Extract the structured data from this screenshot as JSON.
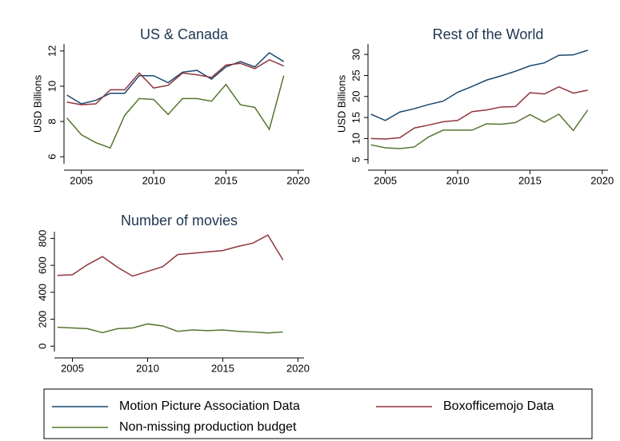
{
  "chart_data": [
    {
      "type": "line",
      "title": "US & Canada",
      "y_label": "USD Billions",
      "x": [
        2004,
        2005,
        2006,
        2007,
        2008,
        2009,
        2010,
        2011,
        2012,
        2013,
        2014,
        2015,
        2016,
        2017,
        2018,
        2019
      ],
      "xlim": [
        2003.8,
        2020.4
      ],
      "xticks": [
        2005,
        2010,
        2015,
        2020
      ],
      "ylim": [
        5.6,
        12.4
      ],
      "yticks": [
        6,
        8,
        10,
        12
      ],
      "series": [
        {
          "name": "Motion Picture Association Data",
          "color": "#1a476f",
          "values": [
            9.5,
            9.0,
            9.2,
            9.6,
            9.6,
            10.6,
            10.6,
            10.2,
            10.8,
            10.9,
            10.4,
            11.1,
            11.4,
            11.1,
            11.9,
            11.4
          ]
        },
        {
          "name": "Boxofficemojo Data",
          "color": "#90353b",
          "values": [
            9.1,
            8.95,
            9.0,
            9.8,
            9.8,
            10.75,
            9.9,
            10.05,
            10.75,
            10.65,
            10.5,
            11.2,
            11.3,
            11.0,
            11.5,
            11.15
          ]
        },
        {
          "name": "Non-missing production budget",
          "color": "#55752f",
          "values": [
            8.2,
            7.25,
            6.8,
            6.5,
            8.35,
            9.3,
            9.25,
            8.4,
            9.3,
            9.3,
            9.15,
            10.1,
            8.95,
            8.8,
            7.55,
            10.6
          ]
        }
      ]
    },
    {
      "type": "line",
      "title": "Rest of the World",
      "y_label": "USD Billions",
      "x": [
        2004,
        2005,
        2006,
        2007,
        2008,
        2009,
        2010,
        2011,
        2012,
        2013,
        2014,
        2015,
        2016,
        2017,
        2018,
        2019
      ],
      "xlim": [
        2003.8,
        2020.4
      ],
      "xticks": [
        2005,
        2010,
        2015,
        2020
      ],
      "ylim": [
        4,
        32.5
      ],
      "yticks": [
        5,
        10,
        15,
        20,
        25,
        30
      ],
      "series": [
        {
          "color": "#1a476f",
          "values": [
            15.8,
            14.3,
            16.3,
            17.1,
            18.1,
            18.9,
            21.0,
            22.4,
            23.9,
            24.9,
            26.0,
            27.3,
            28.0,
            29.8,
            29.9,
            31.0
          ]
        },
        {
          "color": "#90353b",
          "values": [
            10.0,
            9.9,
            10.2,
            12.5,
            13.2,
            14.0,
            14.3,
            16.4,
            16.8,
            17.5,
            17.6,
            20.9,
            20.6,
            22.3,
            20.8,
            21.5
          ]
        },
        {
          "color": "#55752f",
          "values": [
            8.5,
            7.8,
            7.6,
            8.0,
            10.4,
            12.0,
            12.0,
            12.0,
            13.5,
            13.4,
            13.8,
            15.7,
            13.9,
            15.8,
            11.9,
            16.8
          ]
        }
      ]
    },
    {
      "type": "line",
      "title": "Number of movies",
      "x": [
        2004,
        2005,
        2006,
        2007,
        2008,
        2009,
        2010,
        2011,
        2012,
        2013,
        2014,
        2015,
        2016,
        2017,
        2018,
        2019
      ],
      "xlim": [
        2003.8,
        2020.4
      ],
      "xticks": [
        2005,
        2010,
        2015,
        2020
      ],
      "ylim": [
        -40,
        850
      ],
      "yticks": [
        0,
        200,
        400,
        600,
        800
      ],
      "series": [
        {
          "color": "#90353b",
          "values": [
            525,
            530,
            605,
            665,
            585,
            520,
            555,
            590,
            680,
            690,
            700,
            710,
            740,
            765,
            825,
            640
          ]
        },
        {
          "color": "#55752f",
          "values": [
            140,
            135,
            130,
            100,
            130,
            135,
            165,
            150,
            110,
            120,
            115,
            120,
            110,
            105,
            98,
            105
          ]
        }
      ]
    }
  ]
}
